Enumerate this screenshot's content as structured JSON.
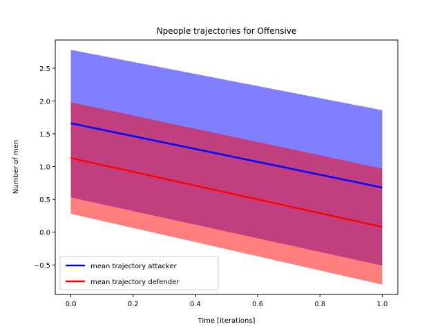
{
  "chart_data": {
    "type": "line",
    "title": "Npeople trajectories for Offensive",
    "xlabel": "Time [iterations]",
    "ylabel": "Number of men",
    "xlim": [
      -0.05,
      1.05
    ],
    "ylim": [
      -0.95,
      2.93
    ],
    "xticks": [
      0.0,
      0.2,
      0.4,
      0.6,
      0.8,
      1.0
    ],
    "xtick_labels": [
      "0.0",
      "0.2",
      "0.4",
      "0.6",
      "0.8",
      "1.0"
    ],
    "yticks": [
      -0.5,
      0.0,
      0.5,
      1.0,
      1.5,
      2.0,
      2.5
    ],
    "ytick_labels": [
      "−0.5",
      "0.0",
      "0.5",
      "1.0",
      "1.5",
      "2.0",
      "2.5"
    ],
    "grid": false,
    "legend_position": "lower-left",
    "bands": [
      {
        "series": "mean trajectory attacker",
        "x": [
          0,
          1
        ],
        "upper": [
          2.78,
          1.86
        ],
        "lower": [
          0.53,
          -0.51
        ],
        "color": "#0000ff",
        "opacity": 0.5
      },
      {
        "series": "mean trajectory defender",
        "x": [
          0,
          1
        ],
        "upper": [
          1.98,
          0.97
        ],
        "lower": [
          0.28,
          -0.8
        ],
        "color": "#ff0000",
        "opacity": 0.5
      }
    ],
    "series": [
      {
        "name": "mean trajectory attacker",
        "x": [
          0,
          1
        ],
        "y": [
          1.66,
          0.68
        ],
        "color": "#0000ff"
      },
      {
        "name": "mean trajectory defender",
        "x": [
          0,
          1
        ],
        "y": [
          1.13,
          0.08
        ],
        "color": "#ff0000"
      }
    ]
  }
}
